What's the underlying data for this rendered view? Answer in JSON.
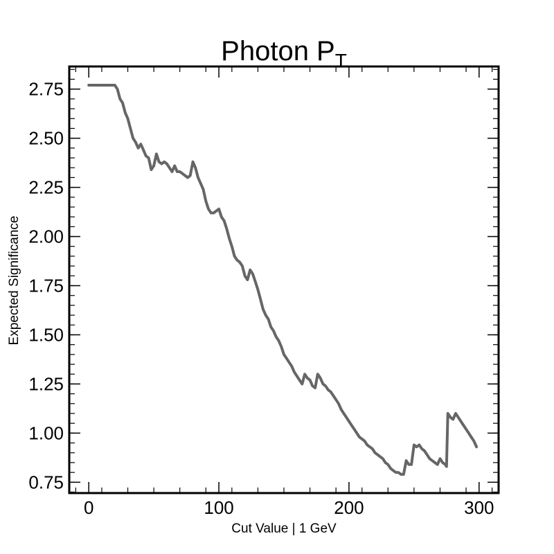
{
  "chart_data": {
    "type": "line",
    "title": "Photon P",
    "title_subscript": "T",
    "xlabel": "Cut Value | 1 GeV",
    "ylabel": "Expected Significance",
    "xlim": [
      -15,
      315
    ],
    "ylim": [
      0.695,
      2.865
    ],
    "xticks": [
      0,
      100,
      200,
      300
    ],
    "xtick_labels": [
      "0",
      "100",
      "200",
      "300"
    ],
    "yticks": [
      0.75,
      1.0,
      1.25,
      1.5,
      1.75,
      2.0,
      2.25,
      2.5,
      2.75
    ],
    "ytick_labels": [
      "0.75",
      "1.00",
      "1.25",
      "1.50",
      "1.75",
      "2.00",
      "2.25",
      "2.50",
      "2.75"
    ],
    "grid": false,
    "line_color": "#666666",
    "series": [
      {
        "x": [
          0,
          5,
          10,
          15,
          20,
          22,
          24,
          26,
          28,
          30,
          32,
          34,
          36,
          38,
          40,
          42,
          44,
          46,
          48,
          50,
          52,
          54,
          56,
          58,
          60,
          62,
          64,
          66,
          68,
          70,
          72,
          74,
          76,
          78,
          80,
          82,
          84,
          86,
          88,
          90,
          92,
          94,
          96,
          98,
          100,
          102,
          104,
          106,
          108,
          110,
          112,
          114,
          116,
          118,
          120,
          122,
          124,
          126,
          128,
          130,
          132,
          134,
          136,
          138,
          140,
          142,
          144,
          146,
          148,
          150,
          152,
          154,
          156,
          158,
          160,
          162,
          164,
          166,
          168,
          170,
          172,
          174,
          176,
          178,
          180,
          182,
          184,
          186,
          188,
          190,
          192,
          194,
          196,
          198,
          200,
          202,
          204,
          206,
          208,
          210,
          212,
          214,
          216,
          218,
          220,
          222,
          224,
          226,
          228,
          230,
          232,
          234,
          236,
          238,
          240,
          242,
          244,
          246,
          248,
          250,
          252,
          254,
          256,
          258,
          260,
          262,
          264,
          266,
          268,
          270,
          272,
          274,
          275,
          276,
          278,
          280,
          282,
          284,
          286,
          288,
          290,
          292,
          294,
          296,
          298
        ],
        "y": [
          2.77,
          2.77,
          2.77,
          2.77,
          2.77,
          2.75,
          2.7,
          2.68,
          2.63,
          2.6,
          2.55,
          2.5,
          2.48,
          2.45,
          2.47,
          2.44,
          2.41,
          2.4,
          2.34,
          2.36,
          2.42,
          2.38,
          2.37,
          2.38,
          2.37,
          2.35,
          2.33,
          2.36,
          2.33,
          2.33,
          2.32,
          2.31,
          2.3,
          2.31,
          2.38,
          2.35,
          2.3,
          2.27,
          2.24,
          2.18,
          2.14,
          2.12,
          2.12,
          2.13,
          2.14,
          2.1,
          2.08,
          2.04,
          1.99,
          1.95,
          1.9,
          1.88,
          1.87,
          1.85,
          1.8,
          1.78,
          1.83,
          1.81,
          1.77,
          1.73,
          1.68,
          1.63,
          1.6,
          1.58,
          1.54,
          1.52,
          1.49,
          1.47,
          1.44,
          1.4,
          1.38,
          1.36,
          1.34,
          1.31,
          1.29,
          1.27,
          1.25,
          1.3,
          1.28,
          1.27,
          1.24,
          1.23,
          1.3,
          1.28,
          1.25,
          1.24,
          1.22,
          1.21,
          1.19,
          1.17,
          1.15,
          1.12,
          1.1,
          1.08,
          1.06,
          1.04,
          1.02,
          1.0,
          0.98,
          0.97,
          0.96,
          0.94,
          0.93,
          0.92,
          0.9,
          0.89,
          0.88,
          0.87,
          0.85,
          0.84,
          0.82,
          0.81,
          0.8,
          0.8,
          0.79,
          0.79,
          0.86,
          0.84,
          0.84,
          0.94,
          0.93,
          0.94,
          0.92,
          0.91,
          0.89,
          0.87,
          0.86,
          0.85,
          0.84,
          0.87,
          0.85,
          0.84,
          0.83,
          1.1,
          1.08,
          1.07,
          1.1,
          1.08,
          1.06,
          1.04,
          1.02,
          1.0,
          0.98,
          0.96,
          0.93
        ]
      }
    ]
  }
}
